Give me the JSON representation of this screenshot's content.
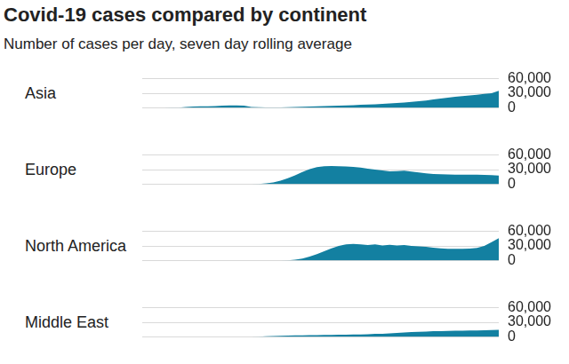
{
  "title": "Covid-19 cases compared by continent",
  "subtitle": "Number of cases per day, seven day rolling average",
  "chart_data": [
    {
      "type": "area",
      "title": "Asia",
      "categories": [
        null,
        null,
        null,
        null,
        null,
        null,
        null,
        null,
        null,
        null,
        null,
        null,
        null,
        null,
        null,
        null,
        null,
        null,
        null,
        null,
        null,
        null,
        null,
        null,
        null,
        null,
        null,
        null,
        null,
        null,
        null,
        null,
        null,
        null,
        null,
        null,
        null,
        null,
        null,
        null,
        null,
        null,
        null,
        null,
        null,
        null,
        null,
        null,
        null,
        null
      ],
      "values": [
        0,
        0,
        0,
        0,
        100,
        500,
        1500,
        2500,
        3000,
        3000,
        3500,
        4500,
        5000,
        5000,
        4500,
        1500,
        1000,
        800,
        800,
        900,
        1000,
        1500,
        2000,
        2500,
        3000,
        3500,
        4000,
        4500,
        5000,
        5500,
        6000,
        6500,
        7000,
        8000,
        9000,
        10000,
        11000,
        12000,
        13500,
        15000,
        17000,
        19000,
        21000,
        22500,
        24000,
        25500,
        27000,
        28500,
        30000,
        35000
      ],
      "color": "#1380a1",
      "ylim": [
        0,
        60000
      ],
      "yticks": [
        0,
        {
          "value": 30000,
          "label": "30,000"
        },
        {
          "value": 60000,
          "label": "60,000"
        }
      ],
      "grid": true,
      "tick_labels": "y"
    },
    {
      "type": "area",
      "title": "Europe",
      "categories": [
        null,
        null,
        null,
        null,
        null,
        null,
        null,
        null,
        null,
        null,
        null,
        null,
        null,
        null,
        null,
        null,
        null,
        null,
        null,
        null,
        null,
        null,
        null,
        null,
        null,
        null,
        null,
        null,
        null,
        null,
        null,
        null,
        null,
        null,
        null,
        null,
        null,
        null,
        null,
        null,
        null,
        null,
        null,
        null,
        null,
        null,
        null,
        null,
        null,
        null
      ],
      "values": [
        0,
        0,
        0,
        0,
        0,
        0,
        0,
        0,
        0,
        0,
        0,
        0,
        0,
        0,
        0,
        0,
        500,
        1500,
        3500,
        7000,
        12000,
        18000,
        25000,
        31000,
        35000,
        37000,
        37500,
        37000,
        36500,
        35500,
        34000,
        32000,
        30000,
        28000,
        26500,
        27000,
        27500,
        26000,
        24000,
        22000,
        21000,
        20500,
        20000,
        19500,
        19500,
        19500,
        19500,
        19000,
        18500,
        17500
      ],
      "color": "#1380a1",
      "ylim": [
        0,
        60000
      ],
      "yticks": [
        0,
        {
          "value": 30000,
          "label": "30,000"
        },
        {
          "value": 60000,
          "label": "60,000"
        }
      ],
      "grid": true,
      "tick_labels": "y"
    },
    {
      "type": "area",
      "title": "North America",
      "categories": [
        null,
        null,
        null,
        null,
        null,
        null,
        null,
        null,
        null,
        null,
        null,
        null,
        null,
        null,
        null,
        null,
        null,
        null,
        null,
        null,
        null,
        null,
        null,
        null,
        null,
        null,
        null,
        null,
        null,
        null,
        null,
        null,
        null,
        null,
        null,
        null,
        null,
        null,
        null,
        null,
        null,
        null,
        null,
        null,
        null,
        null,
        null,
        null,
        null,
        null
      ],
      "values": [
        0,
        0,
        0,
        0,
        0,
        0,
        0,
        0,
        0,
        0,
        0,
        0,
        0,
        0,
        0,
        0,
        0,
        0,
        0,
        0,
        300,
        1500,
        4000,
        8000,
        13000,
        19000,
        25000,
        30000,
        33000,
        34000,
        33000,
        32000,
        33000,
        31000,
        32500,
        31000,
        32000,
        30000,
        29000,
        28000,
        26500,
        25000,
        24000,
        24000,
        24000,
        24500,
        26000,
        30000,
        38000,
        46000
      ],
      "color": "#1380a1",
      "ylim": [
        0,
        60000
      ],
      "yticks": [
        0,
        {
          "value": 30000,
          "label": "30,000"
        },
        {
          "value": 60000,
          "label": "60,000"
        }
      ],
      "grid": true,
      "tick_labels": "y"
    },
    {
      "type": "area",
      "title": "Middle East",
      "categories": [
        null,
        null,
        null,
        null,
        null,
        null,
        null,
        null,
        null,
        null,
        null,
        null,
        null,
        null,
        null,
        null,
        null,
        null,
        null,
        null,
        null,
        null,
        null,
        null,
        null,
        null,
        null,
        null,
        null,
        null,
        null,
        null,
        null,
        null,
        null,
        null,
        null,
        null,
        null,
        null,
        null,
        null,
        null,
        null,
        null,
        null,
        null,
        null,
        null,
        null
      ],
      "values": [
        0,
        0,
        0,
        0,
        0,
        0,
        0,
        0,
        0,
        0,
        0,
        0,
        0,
        0,
        0,
        0,
        500,
        1000,
        1500,
        2000,
        2500,
        3000,
        3000,
        3500,
        3500,
        4000,
        4000,
        4500,
        4500,
        5000,
        5000,
        5500,
        6000,
        6000,
        7000,
        8000,
        9000,
        10000,
        10500,
        11000,
        11500,
        11500,
        12000,
        12500,
        12500,
        13000,
        13000,
        13500,
        14000,
        14500
      ],
      "color": "#1380a1",
      "ylim": [
        0,
        60000
      ],
      "yticks": [
        0,
        {
          "value": 30000,
          "label": "30,000"
        },
        {
          "value": 60000,
          "label": "60,000"
        }
      ],
      "grid": true,
      "tick_labels": "y"
    }
  ]
}
